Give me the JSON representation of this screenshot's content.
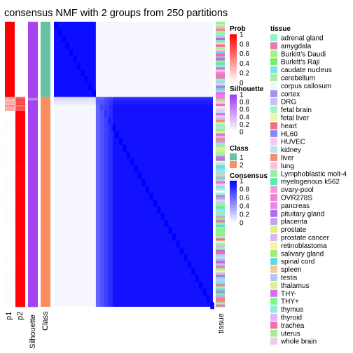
{
  "chart_data": {
    "type": "heatmap",
    "title": "consensus NMF with 2 groups from 250 partitions",
    "annotation_columns": [
      "p1",
      "p2",
      "Silhouette",
      "Class"
    ],
    "right_annotation_label": "tissue",
    "group_sizes": [
      66,
      184
    ],
    "block_mean_consensus": [
      [
        0.95,
        0.03
      ],
      [
        0.03,
        0.93
      ]
    ],
    "colors": {
      "prob_low": "#ffffff",
      "prob_high": "#ff0000",
      "silhouette_low": "#ffffff",
      "silhouette_high": "#9e37ef",
      "class_1": "#66c2a5",
      "class_2": "#fc8d62",
      "consensus_low": "#ffffff",
      "consensus_high": "#0000ff"
    },
    "legends": {
      "prob": {
        "title": "Prob",
        "ticks": [
          "1",
          "0.8",
          "0.6",
          "0.4",
          "0.2",
          "0"
        ]
      },
      "silhouette": {
        "title": "Silhouette",
        "ticks": [
          "1",
          "0.8",
          "0.6",
          "0.4",
          "0.2",
          "0"
        ]
      },
      "class": {
        "title": "Class",
        "items": [
          "1",
          "2"
        ]
      },
      "consensus": {
        "title": "Consensus",
        "ticks": [
          "1",
          "0.8",
          "0.6",
          "0.4",
          "0.2",
          "0"
        ]
      }
    },
    "tissue_legend": {
      "title": "tissue",
      "items": [
        {
          "label": "adrenal gland",
          "color": "#8ef4d0"
        },
        {
          "label": "amygdala",
          "color": "#e77ab0"
        },
        {
          "label": "Burkitt's Daudi",
          "color": "#a3f08b"
        },
        {
          "label": "Burkitt's Raji",
          "color": "#7fe96f"
        },
        {
          "label": "caudate nucleus",
          "color": "#7ee3e8"
        },
        {
          "label": "cerebellum",
          "color": "#a9ef9e"
        },
        {
          "label": "corpus callosum",
          "color": "#e9fbf5"
        },
        {
          "label": "cortex",
          "color": "#a98cec"
        },
        {
          "label": "DRG",
          "color": "#c3c1f6"
        },
        {
          "label": "fetal brain",
          "color": "#9ff2c4"
        },
        {
          "label": "fetal liver",
          "color": "#ecf6a8"
        },
        {
          "label": "heart",
          "color": "#ef6e8d"
        },
        {
          "label": "HL60",
          "color": "#8789ef"
        },
        {
          "label": "HUVEC",
          "color": "#f6c9ef"
        },
        {
          "label": "kidney",
          "color": "#bde3f3"
        },
        {
          "label": "liver",
          "color": "#f08e76"
        },
        {
          "label": "lung",
          "color": "#f7bfe3"
        },
        {
          "label": "Lymphoblastic molt-4",
          "color": "#97f0a0"
        },
        {
          "label": "myelogenous k562",
          "color": "#5fe8b8"
        },
        {
          "label": "ovary-pool",
          "color": "#f59ad8"
        },
        {
          "label": "OVR278S",
          "color": "#ec86d4"
        },
        {
          "label": "pancreas",
          "color": "#e58be5"
        },
        {
          "label": "pituitary gland",
          "color": "#b46ee8"
        },
        {
          "label": "placenta",
          "color": "#c2a6f2"
        },
        {
          "label": "prostate",
          "color": "#dcf08a"
        },
        {
          "label": "prostate cancer",
          "color": "#d7b8f2"
        },
        {
          "label": "retinoblastoma",
          "color": "#f5f3a2"
        },
        {
          "label": "salivary gland",
          "color": "#a2ea78"
        },
        {
          "label": "spinal cord",
          "color": "#62d6e3"
        },
        {
          "label": "spleen",
          "color": "#f6c896"
        },
        {
          "label": "testis",
          "color": "#b6c9f5"
        },
        {
          "label": "thalamus",
          "color": "#e0ef8a"
        },
        {
          "label": "THY-",
          "color": "#d56ef0"
        },
        {
          "label": "THY+",
          "color": "#7ef495"
        },
        {
          "label": "thymus",
          "color": "#97e7e6"
        },
        {
          "label": "thyroid",
          "color": "#e0b4f5"
        },
        {
          "label": "trachea",
          "color": "#f06fae"
        },
        {
          "label": "uterus",
          "color": "#a4ee95"
        },
        {
          "label": "whole brain",
          "color": "#f5c8e6"
        }
      ]
    }
  }
}
